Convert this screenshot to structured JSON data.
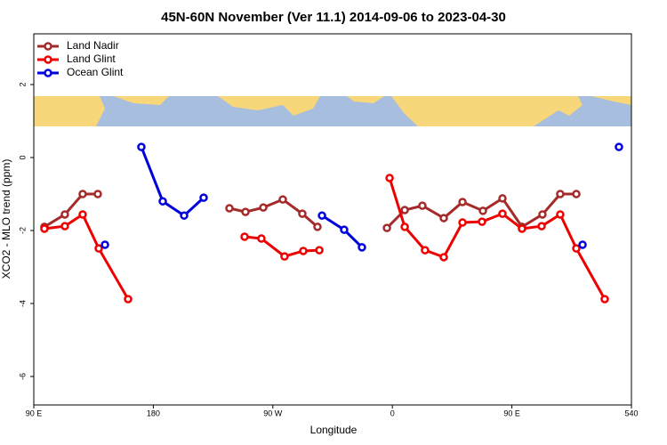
{
  "chart_data": {
    "type": "line",
    "title": "45N-60N November (Ver 11.1)   2014-09-06 to 2023-04-30",
    "x_label": "Longitude",
    "y_label": "XCO2 - MLO trend (ppm)",
    "xlim": [
      90,
      540
    ],
    "ylim": [
      -6.78,
      3.39
    ],
    "xticks": [
      {
        "value": 90,
        "label": "90 E"
      },
      180,
      {
        "value": 270,
        "label": "90 W"
      },
      {
        "value": 360,
        "label": "0"
      },
      {
        "value": 450,
        "label": "90 E"
      },
      540
    ],
    "yticks": [
      2,
      0,
      -2,
      -4,
      -6
    ],
    "legend": "top-left",
    "series": [
      {
        "name": "Land Nadir",
        "color": "#a52a2a",
        "x": [
          98.0,
          113.4,
          126.8,
          138.2,
          null,
          237.3,
          249.4,
          262.8,
          277.5,
          292.2,
          303.6,
          null,
          355.9,
          369.3,
          382.6,
          398.7,
          412.8,
          428.2,
          442.9,
          457.6,
          473.0,
          486.4,
          498.5
        ],
        "values": [
          -1.9,
          -1.56,
          -1.0,
          -1.0,
          null,
          -1.39,
          -1.49,
          -1.37,
          -1.15,
          -1.54,
          -1.9,
          null,
          -1.93,
          -1.44,
          -1.32,
          -1.66,
          -1.22,
          -1.46,
          -1.12,
          -1.9,
          -1.56,
          -1.0,
          -1.0
        ]
      },
      {
        "name": "Land Glint",
        "color": "#ee0000",
        "x": [
          98.0,
          113.4,
          126.8,
          138.9,
          161.0,
          null,
          248.7,
          261.4,
          278.8,
          292.9,
          305.0,
          null,
          357.9,
          369.3,
          384.6,
          398.7,
          412.8,
          427.5,
          442.9,
          457.6,
          472.4,
          486.4,
          498.5,
          519.9
        ],
        "values": [
          -1.95,
          -1.88,
          -1.56,
          -2.49,
          -3.88,
          null,
          -2.17,
          -2.22,
          -2.71,
          -2.56,
          -2.54,
          null,
          -0.56,
          -1.9,
          -2.54,
          -2.73,
          -1.78,
          -1.76,
          -1.54,
          -1.95,
          -1.88,
          -1.56,
          -2.49,
          -3.88
        ]
      },
      {
        "name": "Ocean Glint",
        "color": "#0000dd",
        "x": [
          143.6,
          null,
          171.0,
          187.1,
          203.2,
          217.9,
          null,
          307.0,
          323.7,
          337.1,
          null,
          503.2,
          null,
          530.6
        ],
        "values": [
          -2.39,
          null,
          0.29,
          -1.2,
          -1.59,
          -1.1,
          null,
          -1.59,
          -1.98,
          -2.46,
          null,
          -2.39,
          null,
          0.29
        ]
      }
    ]
  }
}
